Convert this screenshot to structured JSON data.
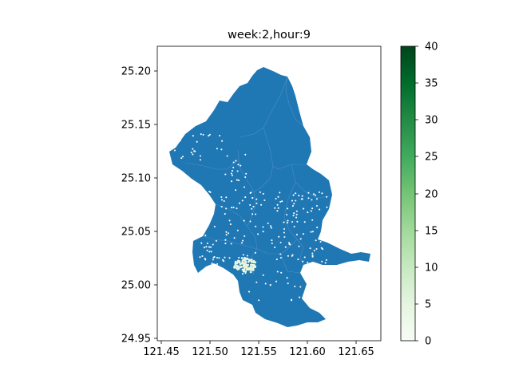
{
  "chart_data": {
    "type": "map",
    "title": "week:2,hour:9",
    "x_ticks": [
      "121.45",
      "121.50",
      "121.55",
      "121.60",
      "121.65"
    ],
    "y_ticks": [
      "24.95",
      "25.00",
      "25.05",
      "25.10",
      "25.15",
      "25.20"
    ],
    "xlim": [
      121.447,
      121.675
    ],
    "ylim": [
      24.947,
      25.222
    ],
    "map_fill_color": "#1f77b4",
    "district_line_color": "#4f8fc6",
    "point_color": "#ffffff",
    "hotspot_color": "#e8f6e0",
    "colorbar": {
      "colormap": "Greens",
      "min": 0,
      "max": 40,
      "ticks": [
        "0",
        "5",
        "10",
        "15",
        "20",
        "25",
        "30",
        "35",
        "40"
      ],
      "colors": [
        "#f7fcf5",
        "#e5f5e0",
        "#c7e9c0",
        "#a1d99b",
        "#74c476",
        "#41ab5d",
        "#238b45",
        "#006d2c",
        "#00441b"
      ]
    }
  }
}
